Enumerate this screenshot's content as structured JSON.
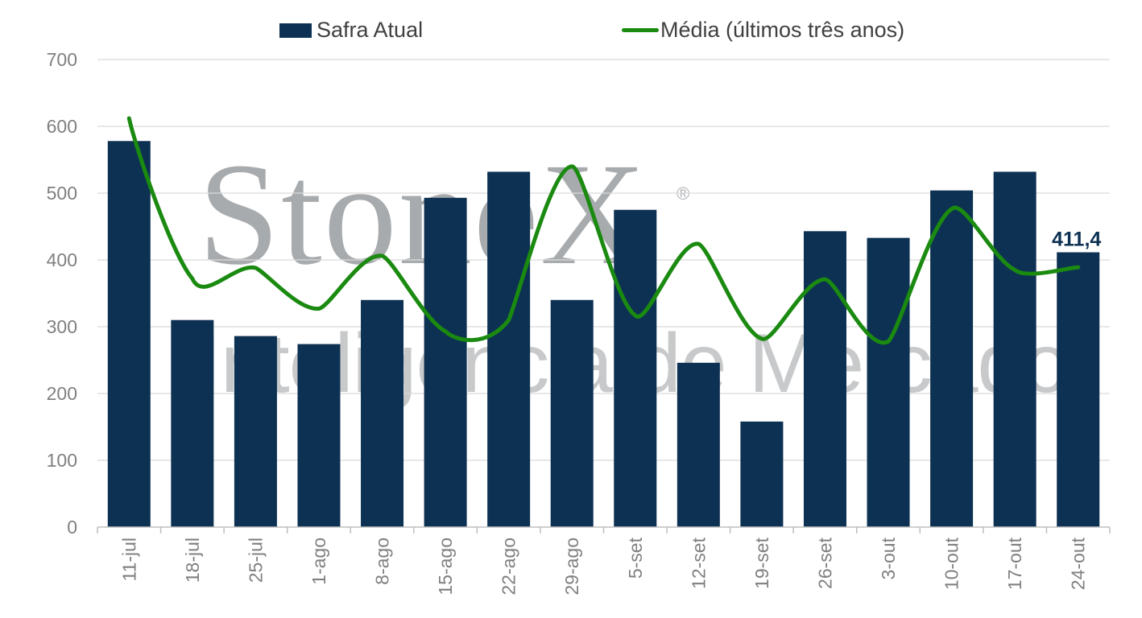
{
  "legend": {
    "bar_label": "Safra Atual",
    "line_label": "Média (últimos três anos)"
  },
  "watermark": {
    "brand": "StoneX",
    "registered": "®",
    "tagline": "Inteligência de Mercado"
  },
  "colors": {
    "bar": "#0d3153",
    "line": "#1a8a10",
    "grid": "#d9d9d9",
    "axis_text": "#808080",
    "data_label": "#0d3153"
  },
  "chart_data": {
    "type": "bar",
    "categories": [
      "11-jul",
      "18-jul",
      "25-jul",
      "1-ago",
      "8-ago",
      "15-ago",
      "22-ago",
      "29-ago",
      "5-set",
      "12-set",
      "19-set",
      "26-set",
      "3-out",
      "10-out",
      "17-out",
      "24-out"
    ],
    "series": [
      {
        "name": "Safra Atual",
        "type": "bar",
        "values": [
          578,
          310,
          286,
          274,
          340,
          493,
          532,
          340,
          475,
          246,
          158,
          443,
          433,
          504,
          532,
          411.4
        ]
      },
      {
        "name": "Média (últimos três anos)",
        "type": "line",
        "values": [
          612,
          372,
          388,
          327,
          406,
          293,
          310,
          540,
          317,
          424,
          282,
          371,
          278,
          476,
          385,
          389
        ]
      }
    ],
    "data_labels": [
      {
        "category": "24-out",
        "series": "Safra Atual",
        "text": "411,4"
      }
    ],
    "yticks": [
      0,
      100,
      200,
      300,
      400,
      500,
      600,
      700
    ],
    "ylim": [
      0,
      700
    ],
    "grid": true,
    "legend_position": "top",
    "title": "",
    "xlabel": "",
    "ylabel": ""
  }
}
